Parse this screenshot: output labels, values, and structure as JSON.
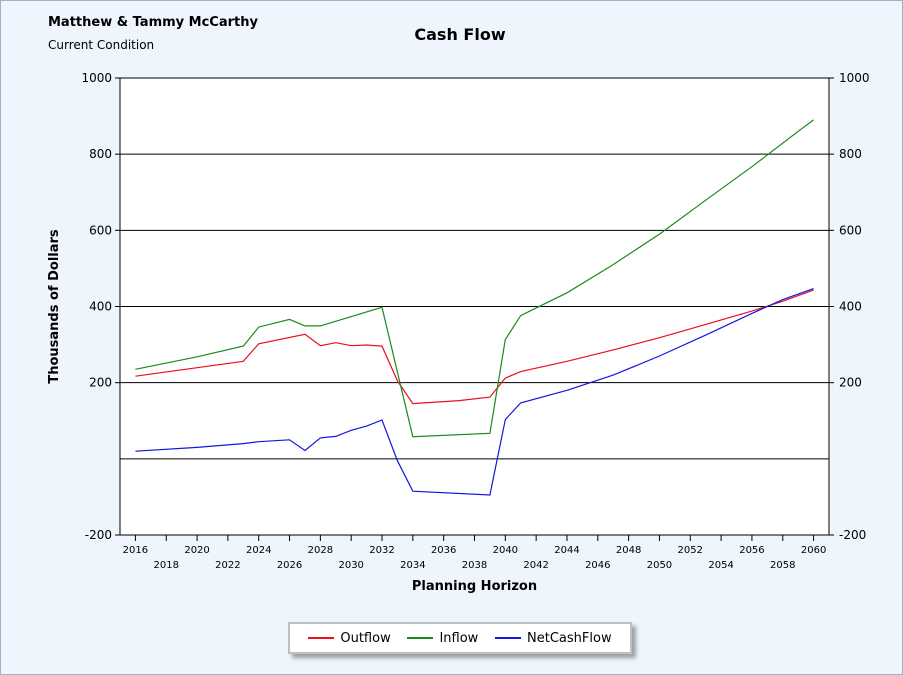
{
  "header": {
    "client_name": "Matthew & Tammy McCarthy",
    "scenario": "Current Condition",
    "title": "Cash Flow"
  },
  "chart_data": {
    "type": "line",
    "title": "Cash Flow",
    "xlabel": "Planning Horizon",
    "ylabel": "Thousands of Dollars",
    "xlim": [
      2015,
      2061
    ],
    "ylim": [
      -200,
      1000
    ],
    "yticks": [
      -200,
      200,
      400,
      600,
      800,
      1000
    ],
    "ytick_labels": [
      "-200",
      "200",
      "400",
      "600",
      "800",
      "1000"
    ],
    "xticks_upper": [
      "2016",
      "2020",
      "2024",
      "2028",
      "2032",
      "2036",
      "2040",
      "2044",
      "2048",
      "2052",
      "2056",
      "2060"
    ],
    "xticks_lower": [
      "2018",
      "2022",
      "2026",
      "2030",
      "2034",
      "2038",
      "2042",
      "2046",
      "2050",
      "2054",
      "2058"
    ],
    "grid": true,
    "legend_position": "bottom-center",
    "series": [
      {
        "name": "Outflow",
        "color": "#e8101e",
        "x": [
          2016,
          2023,
          2024,
          2027,
          2028,
          2029,
          2030,
          2031,
          2032,
          2033,
          2034,
          2037,
          2039,
          2040,
          2041,
          2044,
          2047,
          2050,
          2053,
          2056,
          2058,
          2060
        ],
        "y": [
          217,
          256,
          302,
          327,
          297,
          305,
          297,
          299,
          296,
          205,
          145,
          153,
          162,
          212,
          229,
          256,
          286,
          318,
          353,
          388,
          414,
          443
        ]
      },
      {
        "name": "Inflow",
        "color": "#1a8a1a",
        "x": [
          2016,
          2020,
          2023,
          2024,
          2026,
          2027,
          2028,
          2032,
          2034,
          2039,
          2040,
          2041,
          2044,
          2047,
          2050,
          2053,
          2056,
          2059,
          2060
        ],
        "y": [
          235,
          268,
          296,
          346,
          366,
          349,
          349,
          398,
          58,
          67,
          313,
          376,
          436,
          510,
          590,
          679,
          767,
          860,
          890
        ]
      },
      {
        "name": "NetCashFlow",
        "color": "#1515e0",
        "x": [
          2016,
          2020,
          2023,
          2024,
          2026,
          2027,
          2028,
          2029,
          2030,
          2031,
          2032,
          2033,
          2034,
          2039,
          2040,
          2041,
          2044,
          2047,
          2050,
          2053,
          2056,
          2058,
          2060
        ],
        "y": [
          20,
          30,
          40,
          45,
          50,
          22,
          55,
          59,
          75,
          86,
          102,
          -5,
          -85,
          -95,
          103,
          147,
          180,
          220,
          270,
          325,
          382,
          418,
          447
        ]
      }
    ]
  }
}
